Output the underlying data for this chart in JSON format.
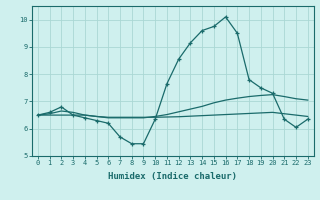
{
  "x_values": [
    0,
    1,
    2,
    3,
    4,
    5,
    6,
    7,
    8,
    9,
    10,
    11,
    12,
    13,
    14,
    15,
    16,
    17,
    18,
    19,
    20,
    21,
    22,
    23
  ],
  "line1_y": [
    6.5,
    6.6,
    6.8,
    6.5,
    6.4,
    6.3,
    6.2,
    5.7,
    5.45,
    5.45,
    6.35,
    7.65,
    8.55,
    9.15,
    9.6,
    9.75,
    10.1,
    9.5,
    7.8,
    7.5,
    7.3,
    6.35,
    6.05,
    6.35
  ],
  "line2_y": [
    6.5,
    6.55,
    6.65,
    6.6,
    6.5,
    6.45,
    6.4,
    6.4,
    6.4,
    6.4,
    6.45,
    6.52,
    6.62,
    6.72,
    6.82,
    6.95,
    7.05,
    7.12,
    7.18,
    7.22,
    7.25,
    7.18,
    7.1,
    7.05
  ],
  "line3_y": [
    6.5,
    6.5,
    6.5,
    6.5,
    6.5,
    6.45,
    6.42,
    6.42,
    6.42,
    6.42,
    6.42,
    6.43,
    6.44,
    6.46,
    6.48,
    6.5,
    6.52,
    6.54,
    6.56,
    6.58,
    6.6,
    6.55,
    6.5,
    6.45
  ],
  "line_color": "#1a6b6b",
  "bg_color": "#cff0ee",
  "grid_color": "#aad8d4",
  "xlabel": "Humidex (Indice chaleur)",
  "ylim": [
    5,
    10.5
  ],
  "xlim": [
    -0.5,
    23.5
  ],
  "yticks": [
    5,
    6,
    7,
    8,
    9,
    10
  ],
  "xticks": [
    0,
    1,
    2,
    3,
    4,
    5,
    6,
    7,
    8,
    9,
    10,
    11,
    12,
    13,
    14,
    15,
    16,
    17,
    18,
    19,
    20,
    21,
    22,
    23
  ],
  "xtick_labels": [
    "0",
    "1",
    "2",
    "3",
    "4",
    "5",
    "6",
    "7",
    "8",
    "9",
    "10",
    "11",
    "12",
    "13",
    "14",
    "15",
    "16",
    "17",
    "18",
    "19",
    "20",
    "21",
    "22",
    "23"
  ],
  "tick_fontsize": 5.0,
  "xlabel_fontsize": 6.5,
  "ylabel_fontsize": 6.0
}
